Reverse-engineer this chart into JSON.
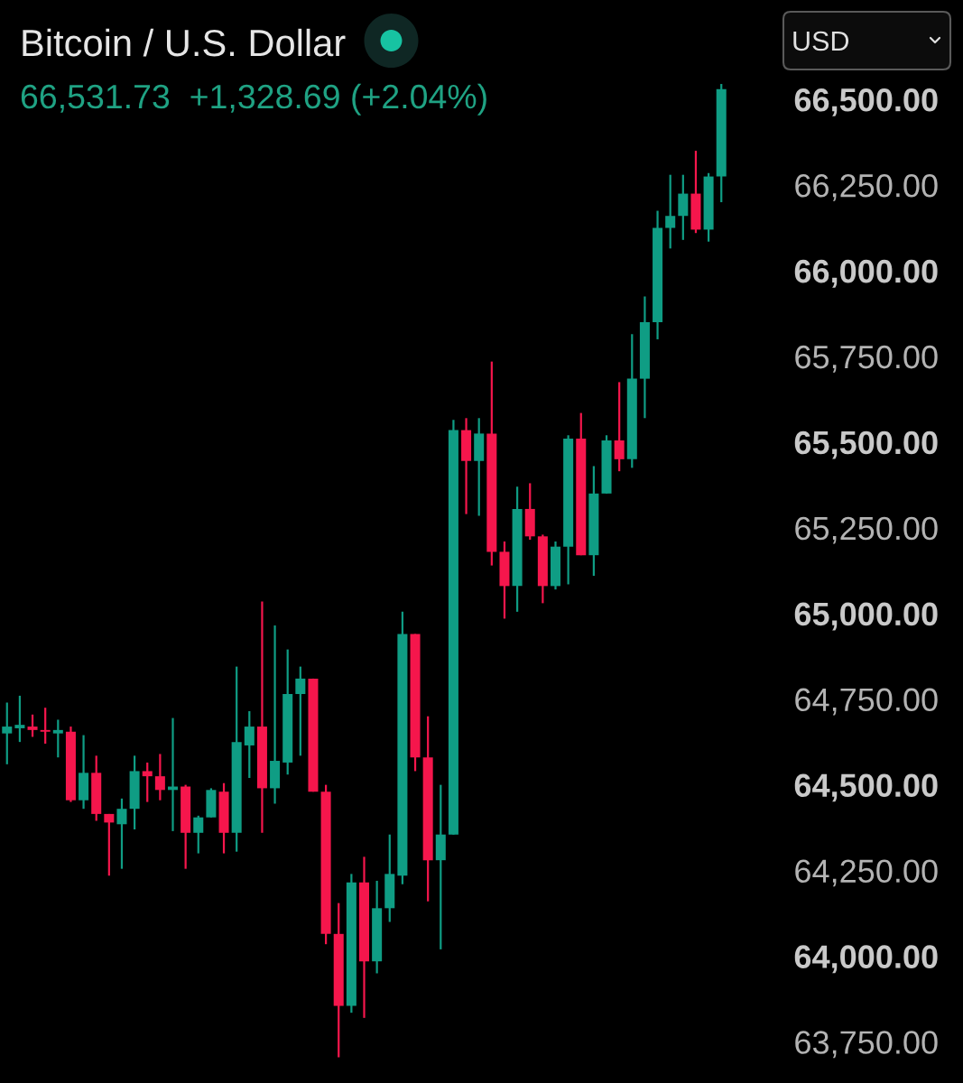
{
  "chart_data": {
    "type": "candlestick",
    "title": "Bitcoin / U.S. Dollar",
    "subtitle": "66,531.73  +1,328.69 (+2.04%)",
    "annotations": [
      "USD"
    ],
    "categories": [
      null,
      null,
      null,
      null,
      null,
      null,
      null,
      null,
      null,
      null,
      null,
      null,
      null,
      null,
      null,
      null,
      null,
      null,
      null,
      null,
      null,
      null,
      null,
      null,
      null,
      null,
      null,
      null,
      null,
      null,
      null,
      null,
      null,
      null,
      null,
      null,
      null,
      null,
      null,
      null,
      null,
      null,
      null,
      null,
      null,
      null,
      null,
      null,
      null,
      null,
      null,
      null,
      null,
      null,
      null,
      null,
      null
    ],
    "ohlc": [
      [
        64650,
        64740,
        64560,
        64670
      ],
      [
        64665,
        64760,
        64625,
        64675
      ],
      [
        64670,
        64705,
        64640,
        64660
      ],
      [
        64660,
        64725,
        64620,
        64655
      ],
      [
        64650,
        64690,
        64580,
        64660
      ],
      [
        64655,
        64670,
        64450,
        64455
      ],
      [
        64455,
        64645,
        64430,
        64535
      ],
      [
        64535,
        64585,
        64395,
        64415
      ],
      [
        64415,
        64415,
        64235,
        64390
      ],
      [
        64385,
        64460,
        64255,
        64430
      ],
      [
        64430,
        64585,
        64370,
        64540
      ],
      [
        64540,
        64565,
        64450,
        64525
      ],
      [
        64525,
        64590,
        64455,
        64485
      ],
      [
        64485,
        64695,
        64365,
        64495
      ],
      [
        64495,
        64500,
        64255,
        64360
      ],
      [
        64360,
        64410,
        64300,
        64405
      ],
      [
        64405,
        64490,
        64405,
        64485
      ],
      [
        64480,
        64505,
        64300,
        64360
      ],
      [
        64360,
        64845,
        64305,
        64625
      ],
      [
        64615,
        64715,
        64520,
        64670
      ],
      [
        64670,
        65035,
        64360,
        64490
      ],
      [
        64490,
        64965,
        64445,
        64570
      ],
      [
        64565,
        64895,
        64530,
        64765
      ],
      [
        64765,
        64845,
        64585,
        64810
      ],
      [
        64810,
        64810,
        64480,
        64480
      ],
      [
        64480,
        64500,
        64035,
        64065
      ],
      [
        64065,
        64155,
        63705,
        63855
      ],
      [
        63855,
        64240,
        63835,
        64215
      ],
      [
        64215,
        64290,
        63820,
        63985
      ],
      [
        63985,
        64220,
        63950,
        64140
      ],
      [
        64140,
        64355,
        64100,
        64240
      ],
      [
        64235,
        65005,
        64210,
        64940
      ],
      [
        64940,
        64940,
        64540,
        64580
      ],
      [
        64580,
        64700,
        64160,
        64280
      ],
      [
        64280,
        64500,
        64020,
        64355
      ],
      [
        64355,
        65565,
        64355,
        65535
      ],
      [
        65535,
        65570,
        65290,
        65445
      ],
      [
        65445,
        65570,
        65285,
        65525
      ],
      [
        65525,
        65735,
        65140,
        65180
      ],
      [
        65180,
        65210,
        64985,
        65080
      ],
      [
        65080,
        65370,
        65005,
        65305
      ],
      [
        65305,
        65380,
        65215,
        65225
      ],
      [
        65225,
        65230,
        65030,
        65080
      ],
      [
        65080,
        65210,
        65070,
        65195
      ],
      [
        65195,
        65520,
        65085,
        65510
      ],
      [
        65510,
        65585,
        65170,
        65170
      ],
      [
        65170,
        65430,
        65110,
        65350
      ],
      [
        65350,
        65520,
        65350,
        65505
      ],
      [
        65505,
        65675,
        65415,
        65450
      ],
      [
        65450,
        65815,
        65425,
        65685
      ],
      [
        65685,
        65925,
        65570,
        65850
      ],
      [
        65850,
        66175,
        65800,
        66125
      ],
      [
        66125,
        66280,
        66065,
        66160
      ],
      [
        66160,
        66280,
        66090,
        66225
      ],
      [
        66225,
        66350,
        66110,
        66120
      ],
      [
        66120,
        66285,
        66085,
        66275
      ],
      [
        66275,
        66545,
        66200,
        66530
      ]
    ],
    "colors": [
      "#0f9d84",
      "#0f9d84",
      "#f5164c",
      "#f5164c",
      "#0f9d84",
      "#f5164c",
      "#0f9d84",
      "#f5164c",
      "#f5164c",
      "#0f9d84",
      "#0f9d84",
      "#f5164c",
      "#f5164c",
      "#0f9d84",
      "#f5164c",
      "#0f9d84",
      "#0f9d84",
      "#f5164c",
      "#0f9d84",
      "#0f9d84",
      "#f5164c",
      "#0f9d84",
      "#0f9d84",
      "#0f9d84",
      "#f5164c",
      "#f5164c",
      "#f5164c",
      "#0f9d84",
      "#f5164c",
      "#0f9d84",
      "#0f9d84",
      "#0f9d84",
      "#f5164c",
      "#f5164c",
      "#0f9d84",
      "#0f9d84",
      "#f5164c",
      "#0f9d84",
      "#f5164c",
      "#f5164c",
      "#0f9d84",
      "#f5164c",
      "#f5164c",
      "#0f9d84",
      "#0f9d84",
      "#f5164c",
      "#0f9d84",
      "#0f9d84",
      "#f5164c",
      "#0f9d84",
      "#0f9d84",
      "#0f9d84",
      "#0f9d84",
      "#0f9d84",
      "#f5164c",
      "#0f9d84",
      "#0f9d84"
    ],
    "ylim": [
      63630,
      66790
    ],
    "yticks": [
      {
        "value": 63750,
        "label": "63,750.00"
      },
      {
        "value": 64000,
        "label": "64,000.00"
      },
      {
        "value": 64250,
        "label": "64,250.00"
      },
      {
        "value": 64500,
        "label": "64,500.00"
      },
      {
        "value": 64750,
        "label": "64,750.00"
      },
      {
        "value": 65000,
        "label": "65,000.00"
      },
      {
        "value": 65250,
        "label": "65,250.00"
      },
      {
        "value": 65500,
        "label": "65,500.00"
      },
      {
        "value": 65750,
        "label": "65,750.00"
      },
      {
        "value": 66000,
        "label": "66,000.00"
      },
      {
        "value": 66250,
        "label": "66,250.00"
      },
      {
        "value": 66500,
        "label": "66,500.00"
      }
    ],
    "tick_labels": "y"
  }
}
